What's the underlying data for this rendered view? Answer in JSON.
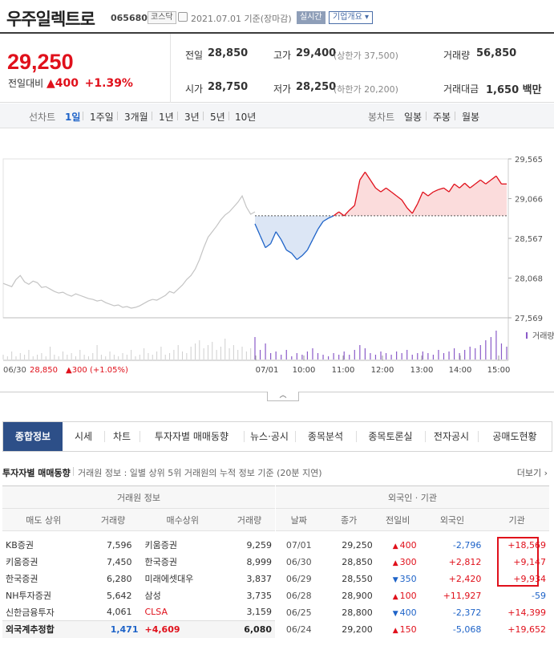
{
  "header": {
    "name": "우주일렉트로",
    "code": "065680",
    "market": "코스닥",
    "date": "2021.07.01 기준(장마감)",
    "realtime": "실시간",
    "corp_overview": "기업개요"
  },
  "price": {
    "current": "29,250",
    "change_label": "전일대비",
    "change_arrow": "▲",
    "change_value": "400",
    "change_rate": "+1.39%"
  },
  "stats": {
    "prev_label": "전일",
    "prev": "28,850",
    "high_label": "고가",
    "high": "29,400",
    "upper_limit": "(상한가 37,500)",
    "volume_label": "거래량",
    "volume": "56,850",
    "open_label": "시가",
    "open": "28,750",
    "low_label": "저가",
    "low": "28,250",
    "lower_limit": "(하한가 20,200)",
    "amount_label": "거래대금",
    "amount": "1,650 백만"
  },
  "period": {
    "line_label": "선차트",
    "line_items": [
      "1일",
      "1주일",
      "3개월",
      "1년",
      "3년",
      "5년",
      "10년"
    ],
    "candle_label": "봉차트",
    "candle_items": [
      "일봉",
      "주봉",
      "월봉"
    ]
  },
  "chart_data": {
    "type": "line",
    "y_ticks": [
      "29,565",
      "29,066",
      "28,567",
      "28,068",
      "27,569"
    ],
    "ylim": [
      27569,
      29565
    ],
    "baseline": 28850,
    "volume_label": "거래량",
    "prev_day_label": "06/30",
    "prev_day_close": "28,850",
    "prev_day_change": "▲300 (+1.05%)",
    "x_ticks": [
      "07/01",
      "10:00",
      "11:00",
      "12:00",
      "13:00",
      "14:00",
      "15:00"
    ],
    "prev_series": [
      28000,
      27980,
      27960,
      28050,
      28100,
      28020,
      27990,
      28030,
      28010,
      27950,
      27960,
      27930,
      27900,
      27880,
      27890,
      27860,
      27840,
      27870,
      27850,
      27830,
      27810,
      27800,
      27780,
      27790,
      27760,
      27740,
      27720,
      27730,
      27700,
      27710,
      27690,
      27700,
      27720,
      27750,
      27780,
      27800,
      27790,
      27820,
      27850,
      27900,
      27880,
      27930,
      27980,
      28050,
      28100,
      28180,
      28300,
      28450,
      28580,
      28650,
      28720,
      28800,
      28860,
      28900,
      28960,
      29020,
      29100,
      28960,
      28870,
      28900
    ],
    "today_series": [
      28750,
      28600,
      28450,
      28500,
      28650,
      28550,
      28420,
      28380,
      28300,
      28350,
      28420,
      28550,
      28680,
      28780,
      28820,
      28850,
      28900,
      28850,
      28920,
      28980,
      29300,
      29400,
      29300,
      29200,
      29150,
      29200,
      29150,
      29100,
      29050,
      28950,
      28880,
      29000,
      29150,
      29100,
      29150,
      29180,
      29200,
      29150,
      29250,
      29200,
      29260,
      29200,
      29250,
      29300,
      29250,
      29300,
      29350,
      29250,
      29250
    ],
    "volume_prev": [
      3,
      2,
      5,
      2,
      4,
      3,
      6,
      2,
      3,
      4,
      2,
      8,
      3,
      2,
      5,
      3,
      4,
      2,
      6,
      3,
      2,
      4,
      9,
      3,
      2,
      5,
      3,
      2,
      4,
      3,
      6,
      2,
      3,
      7,
      4,
      3,
      5,
      8,
      3,
      4,
      6,
      9,
      5,
      4,
      8,
      10,
      12,
      7,
      9,
      11,
      6,
      8,
      13,
      7,
      9,
      6,
      8,
      5,
      7,
      6
    ],
    "volume_today": [
      14,
      6,
      10,
      4,
      5,
      3,
      6,
      2,
      4,
      3,
      5,
      7,
      4,
      3,
      2,
      4,
      3,
      5,
      3,
      6,
      9,
      7,
      4,
      3,
      5,
      4,
      3,
      5,
      4,
      6,
      3,
      4,
      5,
      4,
      3,
      6,
      4,
      5,
      7,
      4,
      6,
      8,
      7,
      9,
      12,
      14,
      18,
      10,
      8
    ]
  },
  "tabs": [
    "종합정보",
    "시세",
    "차트",
    "투자자별 매매동향",
    "뉴스·공시",
    "종목분석",
    "종목토론실",
    "전자공시",
    "공매도현황"
  ],
  "section": {
    "title": "투자자별 매매동향",
    "desc": "거래원 정보 : 일별 상위 5위 거래원의 누적 정보 기준 (20분 지연)",
    "more": "더보기 ›"
  },
  "broker_table": {
    "group": "거래원 정보",
    "headers": [
      "매도 상위",
      "거래량",
      "매수상위",
      "거래량"
    ],
    "rows": [
      [
        "KB증권",
        "7,596",
        "키움증권",
        "9,259"
      ],
      [
        "키움증권",
        "7,450",
        "한국증권",
        "8,999"
      ],
      [
        "한국증권",
        "6,280",
        "미래에셋대우",
        "3,837"
      ],
      [
        "NH투자증권",
        "5,642",
        "삼성",
        "3,735"
      ],
      [
        "신한금융투자",
        "4,061",
        "CLSA",
        "3,159"
      ]
    ],
    "summary": [
      "외국계추정합",
      "1,471",
      "+4,609",
      "6,080"
    ]
  },
  "foreign_table": {
    "group": "외국인 · 기관",
    "headers": [
      "날짜",
      "종가",
      "전일비",
      "외국인",
      "기관"
    ],
    "rows": [
      [
        "07/01",
        "29,250",
        "▲",
        "400",
        "-2,796",
        "+18,569"
      ],
      [
        "06/30",
        "28,850",
        "▲",
        "300",
        "+2,812",
        "+9,147"
      ],
      [
        "06/29",
        "28,550",
        "▼",
        "350",
        "+2,420",
        "+9,934"
      ],
      [
        "06/28",
        "28,900",
        "▲",
        "100",
        "+11,927",
        "-59"
      ],
      [
        "06/25",
        "28,800",
        "▼",
        "400",
        "-2,372",
        "+14,399"
      ],
      [
        "06/24",
        "29,200",
        "▲",
        "150",
        "-5,068",
        "+19,652"
      ]
    ]
  },
  "colors": {
    "up": "#e0101b",
    "down": "#1e63c8",
    "accent": "#2d4f88"
  }
}
